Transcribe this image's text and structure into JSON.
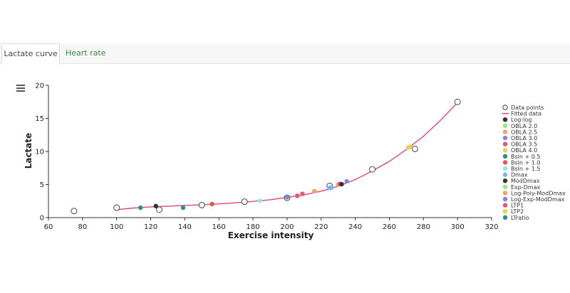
{
  "tabs": [
    {
      "label": "Lactate curve",
      "active": true
    },
    {
      "label": "Heart rate",
      "active": false
    }
  ],
  "menu_icon": "hamburger-menu-icon",
  "chart_data": {
    "type": "scatter",
    "xlabel": "Exercise intensity",
    "ylabel": "Lactate",
    "xlim": [
      60,
      320
    ],
    "ylim": [
      0,
      20
    ],
    "x_ticks": [
      60,
      80,
      100,
      120,
      140,
      160,
      180,
      200,
      220,
      240,
      260,
      280,
      300,
      320
    ],
    "y_ticks": [
      0,
      5,
      10,
      15,
      20
    ],
    "grid": false,
    "legend_position": "right",
    "data_points": {
      "name": "Data points",
      "x": [
        75,
        100,
        125,
        150,
        175,
        200,
        225,
        250,
        275,
        300
      ],
      "y": [
        1.0,
        1.5,
        1.2,
        1.9,
        2.4,
        3.0,
        4.8,
        7.3,
        10.4,
        17.5
      ]
    },
    "fitted": {
      "name": "Fitted data",
      "color": "#e0457b",
      "x": [
        100,
        110,
        120,
        130,
        140,
        150,
        160,
        170,
        180,
        190,
        200,
        210,
        220,
        230,
        240,
        250,
        260,
        270,
        280,
        290,
        300
      ],
      "y": [
        1.2,
        1.45,
        1.62,
        1.73,
        1.85,
        1.95,
        2.08,
        2.25,
        2.45,
        2.7,
        3.05,
        3.45,
        4.0,
        4.75,
        5.75,
        7.05,
        8.5,
        10.3,
        12.3,
        14.7,
        17.4
      ]
    },
    "thresholds": [
      {
        "name": "Log-log",
        "color": "#333333",
        "x": 123,
        "y": 1.75
      },
      {
        "name": "OBLA 2.0",
        "color": "#90ed7d",
        "x": null,
        "y": null
      },
      {
        "name": "OBLA 2.5",
        "color": "#f7a35c",
        "x": 230,
        "y": 5.0
      },
      {
        "name": "OBLA 3.0",
        "color": "#8085e9",
        "x": 235,
        "y": 5.5
      },
      {
        "name": "OBLA 3.5",
        "color": "#e4547a",
        "x": 231,
        "y": 5.1
      },
      {
        "name": "OBLA 4.0",
        "color": "#e4d354",
        "x": 272,
        "y": 10.7
      },
      {
        "name": "Bsln + 0.5",
        "color": "#2b908f",
        "x": 114,
        "y": 1.5
      },
      {
        "name": "Bsln + 1.0",
        "color": "#e25555",
        "x": 156,
        "y": 2.05
      },
      {
        "name": "Bsln + 1.5",
        "color": "#91e8e1",
        "x": 184,
        "y": 2.55
      },
      {
        "name": "Dmax",
        "color": "#7cb5ec",
        "x": 226,
        "y": 4.55
      },
      {
        "name": "ModDmax",
        "color": "#333333",
        "x": 232,
        "y": 5.05
      },
      {
        "name": "Exp-Dmax",
        "color": "#90ed7d",
        "x": 200,
        "y": 3.05
      },
      {
        "name": "Log-Poly-ModDmax",
        "color": "#f7a35c",
        "x": 216,
        "y": 4.0
      },
      {
        "name": "Log-Exp-ModDmax",
        "color": "#8085e9",
        "x": 200,
        "y": 3.1
      },
      {
        "name": "LTP1",
        "color": "#e4547a",
        "x": 206,
        "y": 3.3
      },
      {
        "name": "LTP2",
        "color": "#e4d354",
        "x": 271,
        "y": 10.6
      },
      {
        "name": "LTratio",
        "color": "#2b908f",
        "x": 139,
        "y": 1.5
      }
    ],
    "extra_points": [
      {
        "color": "#e4547a",
        "x": 209,
        "y": 3.6
      },
      {
        "color": "#7cb5ec",
        "x": 225,
        "y": 4.5
      }
    ]
  }
}
